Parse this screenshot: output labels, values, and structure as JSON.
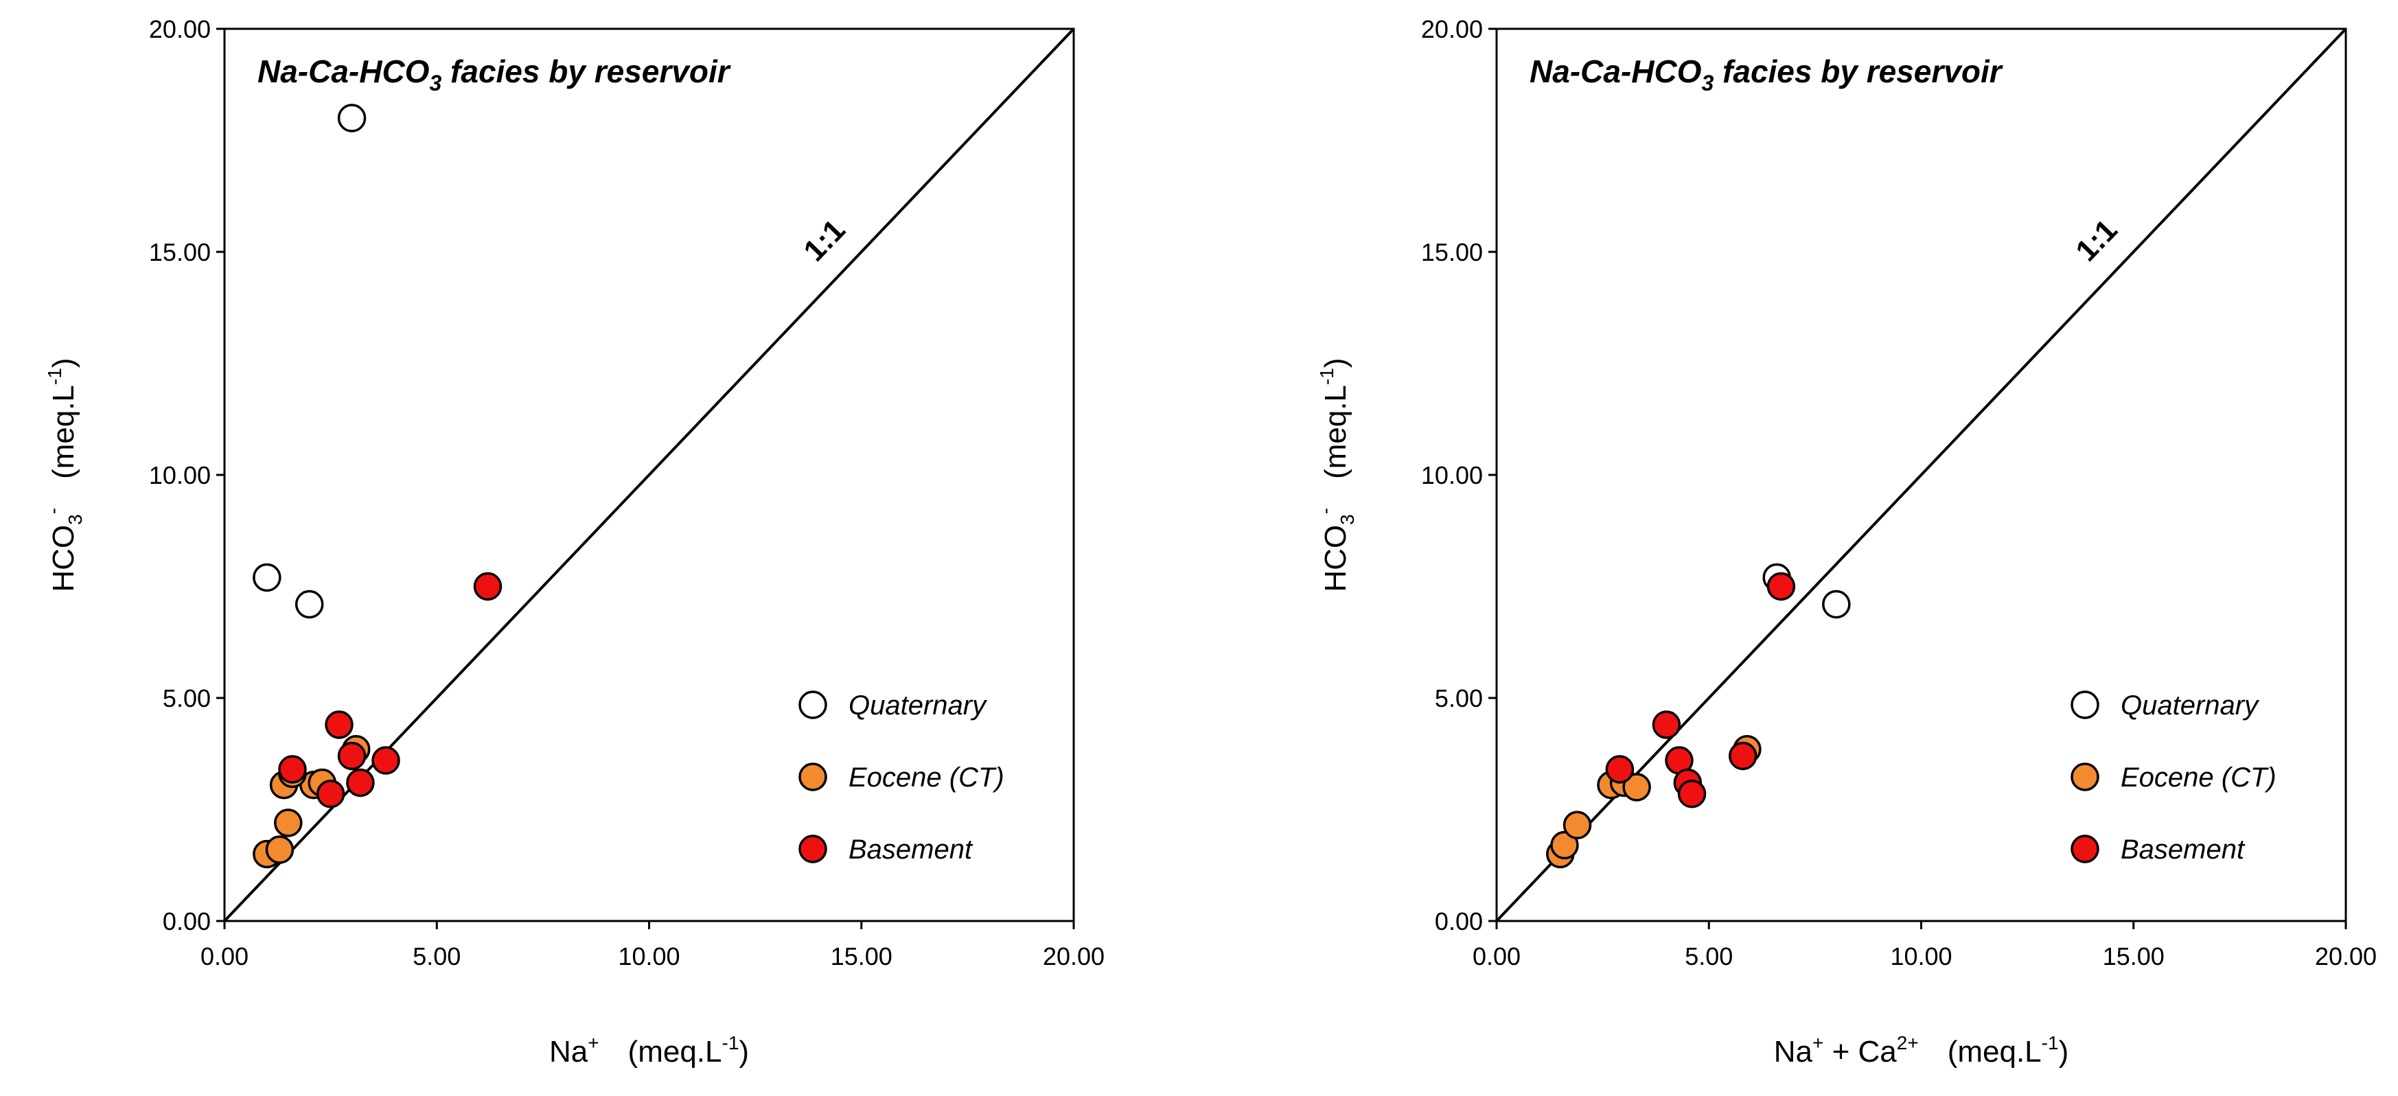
{
  "chart_data": [
    {
      "type": "scatter",
      "title_parts": {
        "pre": "Na-Ca-HCO",
        "sub": "3",
        "post": " facies by reservoir"
      },
      "xlabel": {
        "base": "Na",
        "sup": "+",
        "unit": "(meq.L",
        "unit_sup": "-1",
        "unit_close": ")"
      },
      "ylabel": {
        "base": "HCO",
        "sub": "3",
        "sup": "-",
        "unit": "(meq.L",
        "unit_sup": "-1",
        "unit_close": ")"
      },
      "xlim": [
        0,
        20
      ],
      "ylim": [
        0,
        20
      ],
      "ticks": [
        "0.00",
        "5.00",
        "10.00",
        "15.00",
        "20.00"
      ],
      "reference_line": {
        "label": "1:1",
        "from": [
          0,
          0
        ],
        "to": [
          20,
          20
        ]
      },
      "legend": {
        "position": "bottom-right"
      },
      "series": [
        {
          "name": "Quaternary",
          "fill": "#ffffff",
          "points": [
            [
              1.0,
              7.7
            ],
            [
              2.0,
              7.1
            ],
            [
              3.0,
              18.0
            ]
          ]
        },
        {
          "name": "Eocene (CT)",
          "fill": "#f28a2f",
          "points": [
            [
              1.0,
              1.5
            ],
            [
              1.3,
              1.6
            ],
            [
              1.5,
              2.2
            ],
            [
              1.4,
              3.05
            ],
            [
              2.1,
              3.05
            ],
            [
              2.3,
              3.1
            ],
            [
              3.1,
              3.85
            ],
            [
              1.6,
              3.3
            ]
          ]
        },
        {
          "name": "Basement",
          "fill": "#ee1111",
          "points": [
            [
              1.6,
              3.4
            ],
            [
              2.5,
              2.85
            ],
            [
              2.7,
              4.4
            ],
            [
              3.0,
              3.7
            ],
            [
              3.2,
              3.1
            ],
            [
              3.8,
              3.6
            ],
            [
              6.2,
              7.5
            ]
          ]
        }
      ]
    },
    {
      "type": "scatter",
      "title_parts": {
        "pre": "Na-Ca-HCO",
        "sub": "3",
        "post": " facies by reservoir"
      },
      "xlabel": {
        "base": "Na",
        "sup": "+",
        "mid": " + Ca",
        "sup2": "2+",
        "unit": "(meq.L",
        "unit_sup": "-1",
        "unit_close": ")"
      },
      "ylabel": {
        "base": "HCO",
        "sub": "3",
        "sup": "-",
        "unit": "(meq.L",
        "unit_sup": "-1",
        "unit_close": ")"
      },
      "xlim": [
        0,
        20
      ],
      "ylim": [
        0,
        20
      ],
      "ticks": [
        "0.00",
        "5.00",
        "10.00",
        "15.00",
        "20.00"
      ],
      "reference_line": {
        "label": "1:1",
        "from": [
          0,
          0
        ],
        "to": [
          20,
          20
        ]
      },
      "legend": {
        "position": "bottom-right"
      },
      "series": [
        {
          "name": "Quaternary",
          "fill": "#ffffff",
          "points": [
            [
              6.6,
              7.7
            ],
            [
              8.0,
              7.1
            ]
          ]
        },
        {
          "name": "Eocene (CT)",
          "fill": "#f28a2f",
          "points": [
            [
              1.5,
              1.5
            ],
            [
              1.6,
              1.7
            ],
            [
              1.9,
              2.15
            ],
            [
              2.7,
              3.05
            ],
            [
              3.0,
              3.1
            ],
            [
              3.3,
              3.0
            ],
            [
              5.9,
              3.85
            ]
          ]
        },
        {
          "name": "Basement",
          "fill": "#ee1111",
          "points": [
            [
              2.9,
              3.4
            ],
            [
              4.0,
              4.4
            ],
            [
              4.3,
              3.6
            ],
            [
              4.5,
              3.1
            ],
            [
              4.6,
              2.85
            ],
            [
              5.8,
              3.7
            ],
            [
              6.7,
              7.5
            ]
          ]
        }
      ]
    }
  ]
}
